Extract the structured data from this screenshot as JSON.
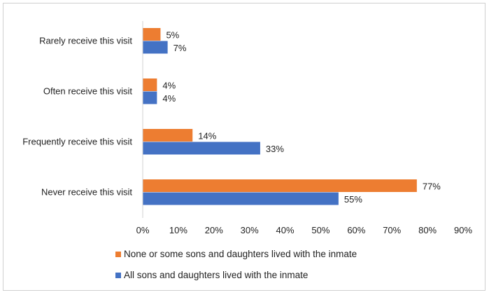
{
  "chart_data": {
    "type": "bar",
    "orientation": "horizontal",
    "categories": [
      "Rarely receive this visit",
      "Often receive this visit",
      "Frequently receive this visit",
      "Never receive this visit"
    ],
    "series": [
      {
        "name": "None or some sons and daughters lived with the inmate",
        "color": "#ED7D31",
        "values": [
          5,
          4,
          14,
          77
        ],
        "labels": [
          "5%",
          "4%",
          "14%",
          "77%"
        ]
      },
      {
        "name": "All sons and daughters lived with the inmate",
        "color": "#4472C4",
        "values": [
          7,
          4,
          33,
          55
        ],
        "labels": [
          "7%",
          "4%",
          "33%",
          "55%"
        ]
      }
    ],
    "xlim": [
      0,
      90
    ],
    "xticks": [
      "0%",
      "10%",
      "20%",
      "30%",
      "40%",
      "50%",
      "60%",
      "70%",
      "80%",
      "90%"
    ],
    "grid": false,
    "legend": "bottom"
  }
}
